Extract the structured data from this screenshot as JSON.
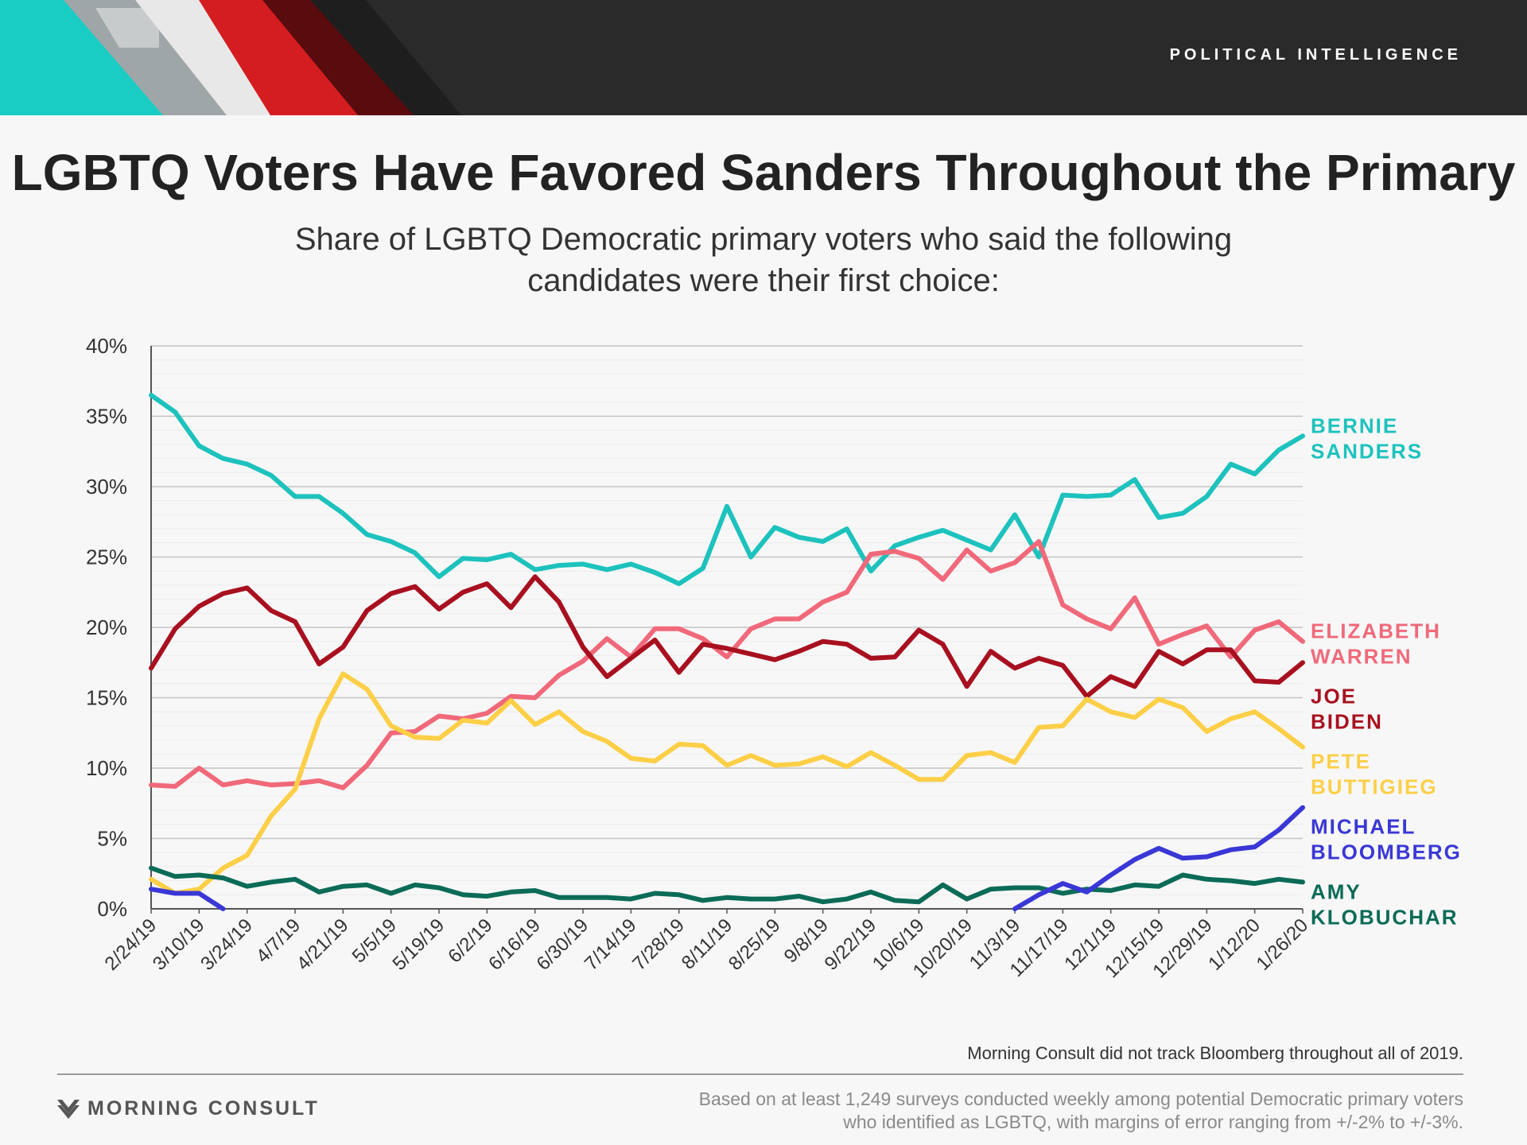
{
  "header": {
    "label": "POLITICAL INTELLIGENCE"
  },
  "title": "LGBTQ Voters Have Favored Sanders Throughout the Primary",
  "subtitle": "Share of LGBTQ Democratic primary voters who said the following candidates were their first choice:",
  "footnote": "Morning Consult did not track Bloomberg throughout all of 2019.",
  "source": "Based on at least 1,249 surveys conducted weekly among potential Democratic primary voters who identified as LGBTQ, with margins of error ranging from +/-2% to +/-3%.",
  "logo": {
    "text": "MORNING CONSULT",
    "icon": "morning-consult-logo-icon"
  },
  "colors": {
    "sanders": "#1dc2bd",
    "warren": "#f0697a",
    "biden": "#a8101f",
    "buttigieg": "#fccf47",
    "bloomberg": "#3a37d6",
    "klobuchar": "#0b6b57"
  },
  "chart_data": {
    "type": "line",
    "ylim": [
      0,
      40
    ],
    "yticks": [
      "0%",
      "5%",
      "10%",
      "15%",
      "20%",
      "25%",
      "30%",
      "35%",
      "40%"
    ],
    "xtick_labels": [
      "2/24/19",
      "3/10/19",
      "3/24/19",
      "4/7/19",
      "4/21/19",
      "5/5/19",
      "5/19/19",
      "6/2/19",
      "6/16/19",
      "6/30/19",
      "7/14/19",
      "7/28/19",
      "8/11/19",
      "8/25/19",
      "9/8/19",
      "9/22/19",
      "10/6/19",
      "10/20/19",
      "11/3/19",
      "11/17/19",
      "12/1/19",
      "12/15/19",
      "12/29/19",
      "1/12/20",
      "1/26/20"
    ],
    "grid": true,
    "legend": "right, labels at line ends",
    "series": [
      {
        "key": "sanders",
        "label_lines": [
          "BERNIE",
          "SANDERS"
        ],
        "values": [
          36.5,
          35.3,
          32.9,
          32,
          31.6,
          30.8,
          29.3,
          29.3,
          28.1,
          26.6,
          26.1,
          25.3,
          23.6,
          24.9,
          24.8,
          25.2,
          24.1,
          24.4,
          24.5,
          24.1,
          24.5,
          23.9,
          23.1,
          24.2,
          28.6,
          25,
          27.1,
          26.4,
          26.1,
          27,
          24,
          25.8,
          26.4,
          26.9,
          26.2,
          25.5,
          28,
          25,
          29.4,
          29.3,
          29.4,
          30.5,
          27.8,
          28.1,
          29.3,
          31.6,
          30.9,
          32.6,
          33.6
        ]
      },
      {
        "key": "warren",
        "label_lines": [
          "ELIZABETH",
          "WARREN"
        ],
        "values": [
          8.8,
          8.7,
          10,
          8.8,
          9.1,
          8.8,
          8.9,
          9.1,
          8.6,
          10.2,
          12.5,
          12.6,
          13.7,
          13.5,
          13.9,
          15.1,
          15,
          16.6,
          17.6,
          19.2,
          17.9,
          19.9,
          19.9,
          19.2,
          17.9,
          19.9,
          20.6,
          20.6,
          21.8,
          22.5,
          25.2,
          25.4,
          24.9,
          23.4,
          25.5,
          24,
          24.6,
          26.1,
          21.6,
          20.6,
          19.9,
          22.1,
          18.8,
          19.5,
          20.1,
          17.9,
          19.8,
          20.4,
          19
        ]
      },
      {
        "key": "biden",
        "label_lines": [
          "JOE",
          "BIDEN"
        ],
        "values": [
          17.1,
          19.9,
          21.5,
          22.4,
          22.8,
          21.2,
          20.4,
          17.4,
          18.6,
          21.2,
          22.4,
          22.9,
          21.3,
          22.5,
          23.1,
          21.4,
          23.6,
          21.8,
          18.6,
          16.5,
          17.8,
          19.1,
          16.8,
          18.8,
          18.5,
          18.1,
          17.7,
          18.3,
          19,
          18.8,
          17.8,
          17.9,
          19.8,
          18.8,
          15.8,
          18.3,
          17.1,
          17.8,
          17.3,
          15.1,
          16.5,
          15.8,
          18.3,
          17.4,
          18.4,
          18.4,
          16.2,
          16.1,
          17.5
        ]
      },
      {
        "key": "buttigieg",
        "label_lines": [
          "PETE",
          "BUTTIGIEG"
        ],
        "values": [
          2.1,
          1.1,
          1.4,
          2.9,
          3.8,
          6.6,
          8.5,
          13.5,
          16.7,
          15.6,
          13,
          12.2,
          12.1,
          13.4,
          13.2,
          14.8,
          13.1,
          14,
          12.6,
          11.9,
          10.7,
          10.5,
          11.7,
          11.6,
          10.2,
          10.9,
          10.2,
          10.3,
          10.8,
          10.1,
          11.1,
          10.2,
          9.2,
          9.2,
          10.9,
          11.1,
          10.4,
          12.9,
          13,
          14.9,
          14,
          13.6,
          14.9,
          14.3,
          12.6,
          13.5,
          14,
          12.8,
          11.5
        ]
      },
      {
        "key": "klobuchar",
        "label_lines": [
          "AMY",
          "KLOBUCHAR"
        ],
        "values": [
          2.9,
          2.3,
          2.4,
          2.2,
          1.6,
          1.9,
          2.1,
          1.2,
          1.6,
          1.7,
          1.1,
          1.7,
          1.5,
          1,
          0.9,
          1.2,
          1.3,
          0.8,
          0.8,
          0.8,
          0.7,
          1.1,
          1,
          0.6,
          0.8,
          0.7,
          0.7,
          0.9,
          0.5,
          0.7,
          1.2,
          0.6,
          0.5,
          1.7,
          0.7,
          1.4,
          1.5,
          1.5,
          1.1,
          1.4,
          1.3,
          1.7,
          1.6,
          2.4,
          2.1,
          2,
          1.8,
          2.1,
          1.9
        ]
      },
      {
        "key": "bloomberg",
        "label_lines": [
          "MICHAEL",
          "BLOOMBERG"
        ],
        "values": [
          1.4,
          1.1,
          1.1,
          0,
          null,
          null,
          null,
          null,
          null,
          null,
          null,
          null,
          null,
          null,
          null,
          null,
          null,
          null,
          null,
          null,
          null,
          null,
          null,
          null,
          null,
          null,
          null,
          null,
          null,
          null,
          null,
          null,
          null,
          null,
          null,
          null,
          0,
          1,
          1.8,
          1.2,
          2.4,
          3.5,
          4.3,
          3.6,
          3.7,
          4.2,
          4.4,
          5.6,
          7.2
        ]
      }
    ]
  }
}
